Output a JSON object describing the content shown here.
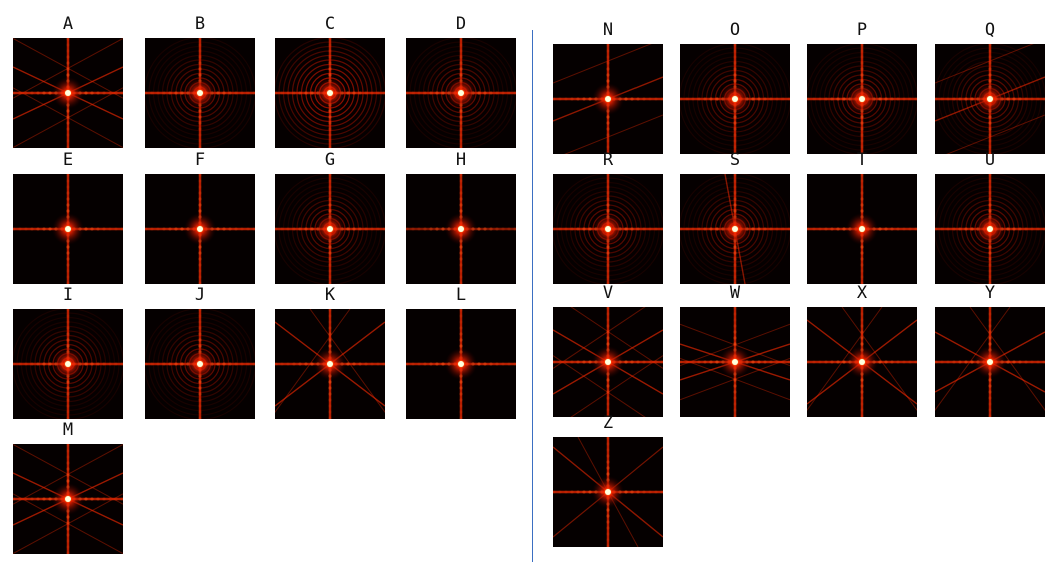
{
  "tiles": [
    {
      "label": "A",
      "pattern": "hexlines"
    },
    {
      "label": "B",
      "pattern": "rings"
    },
    {
      "label": "C",
      "pattern": "rings-strong"
    },
    {
      "label": "D",
      "pattern": "rings"
    },
    {
      "label": "E",
      "pattern": "cross"
    },
    {
      "label": "F",
      "pattern": "cross"
    },
    {
      "label": "G",
      "pattern": "rings"
    },
    {
      "label": "H",
      "pattern": "cross-dotted"
    },
    {
      "label": "I",
      "pattern": "cross-rings"
    },
    {
      "label": "J",
      "pattern": "rings"
    },
    {
      "label": "K",
      "pattern": "star"
    },
    {
      "label": "L",
      "pattern": "cross"
    },
    {
      "label": "M",
      "pattern": "hexlines"
    },
    {
      "label": "N",
      "pattern": "tilted"
    },
    {
      "label": "O",
      "pattern": "rings"
    },
    {
      "label": "P",
      "pattern": "rings"
    },
    {
      "label": "Q",
      "pattern": "tilted-rings"
    },
    {
      "label": "R",
      "pattern": "rings"
    },
    {
      "label": "S",
      "pattern": "rings-tilt"
    },
    {
      "label": "T",
      "pattern": "cross"
    },
    {
      "label": "U",
      "pattern": "rings"
    },
    {
      "label": "V",
      "pattern": "hexlines-wide"
    },
    {
      "label": "W",
      "pattern": "hexlines-flat"
    },
    {
      "label": "X",
      "pattern": "star"
    },
    {
      "label": "Y",
      "pattern": "star-wide"
    },
    {
      "label": "Z",
      "pattern": "diagonal"
    }
  ],
  "colors": {
    "background": "#ffffff",
    "tile_bg": "#050000",
    "glow": "#ff2a00",
    "core": "#ffee88",
    "divider": "#3b6fc2"
  }
}
